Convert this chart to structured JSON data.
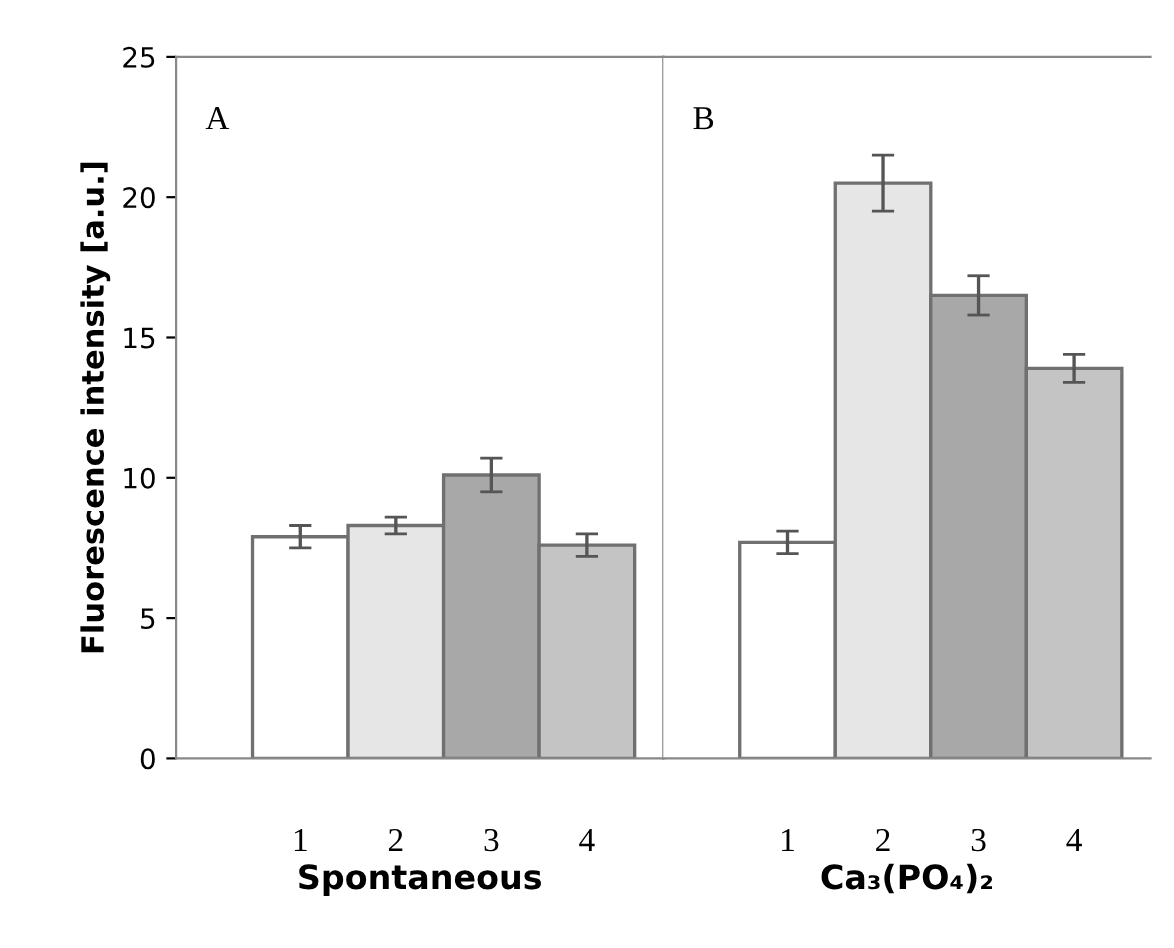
{
  "chart_data": [
    {
      "type": "bar",
      "categories": [
        "1",
        "2",
        "3",
        "4"
      ],
      "values": [
        7.9,
        8.3,
        10.1,
        7.6
      ],
      "errors": [
        0.4,
        0.3,
        0.6,
        0.4
      ],
      "colors": [
        "#ffffff",
        "#e6e6e6",
        "#a8a8a8",
        "#c4c4c4"
      ],
      "xlabel": "Spontaneous",
      "ylabel": "Fluorescence intensity [a.u.]",
      "ylim": [
        0,
        25
      ],
      "yticks": [
        0,
        5,
        10,
        15,
        20,
        25
      ],
      "annotations": [
        "A"
      ],
      "grid": false
    },
    {
      "type": "bar",
      "categories": [
        "1",
        "2",
        "3",
        "4"
      ],
      "values": [
        7.7,
        20.5,
        16.5,
        13.9
      ],
      "errors": [
        0.4,
        1.0,
        0.7,
        0.5
      ],
      "colors": [
        "#ffffff",
        "#e6e6e6",
        "#a8a8a8",
        "#c4c4c4"
      ],
      "xlabel": "Ca₃(PO₄)₂",
      "ylim": [
        0,
        25
      ],
      "yticks": [
        0,
        5,
        10,
        15,
        20,
        25
      ],
      "tick_labels": "x",
      "annotations": [
        "B"
      ],
      "grid": false
    }
  ]
}
